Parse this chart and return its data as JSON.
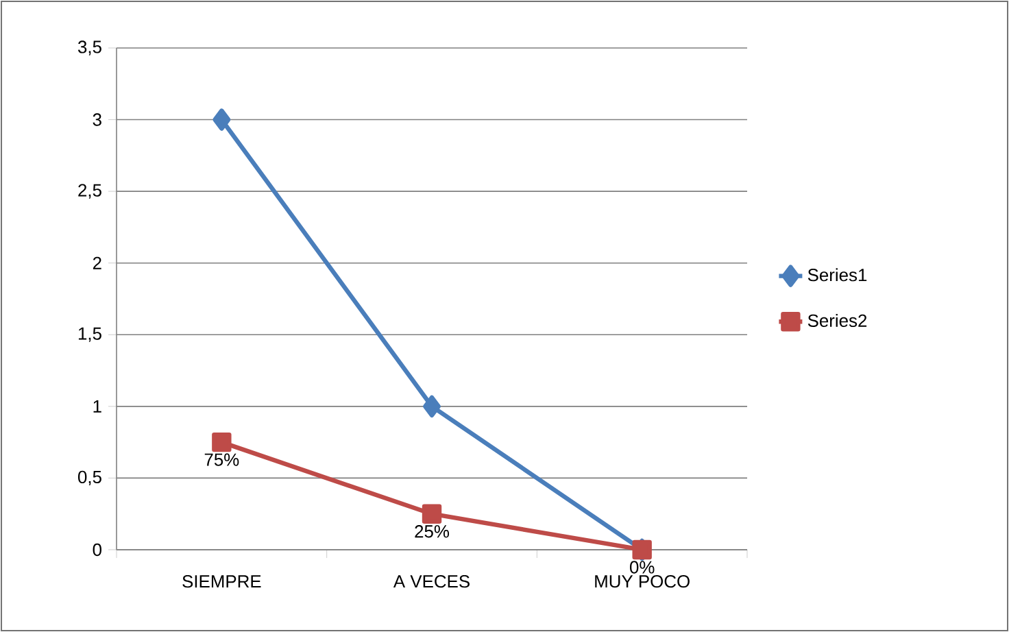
{
  "chart_data": {
    "type": "line",
    "categories": [
      "SIEMPRE",
      "A VECES",
      "MUY POCO"
    ],
    "series": [
      {
        "name": "Series1",
        "color": "#4a7ebb",
        "values": [
          3,
          1,
          0
        ],
        "marker": "diamond"
      },
      {
        "name": "Series2",
        "color": "#be4b48",
        "values": [
          0.75,
          0.25,
          0
        ],
        "marker": "square",
        "value_labels": [
          "75%",
          "25%",
          "0%"
        ]
      }
    ],
    "ylim": [
      0,
      3.5
    ],
    "yticks": [
      0,
      {
        "value": 0.5,
        "label": "0,5"
      },
      1,
      {
        "value": 1.5,
        "label": "1,5"
      },
      2,
      {
        "value": 2.5,
        "label": "2,5"
      },
      3,
      {
        "value": 3.5,
        "label": "3,5"
      }
    ],
    "grid": "y",
    "legend": "right",
    "line_style": "solid"
  }
}
